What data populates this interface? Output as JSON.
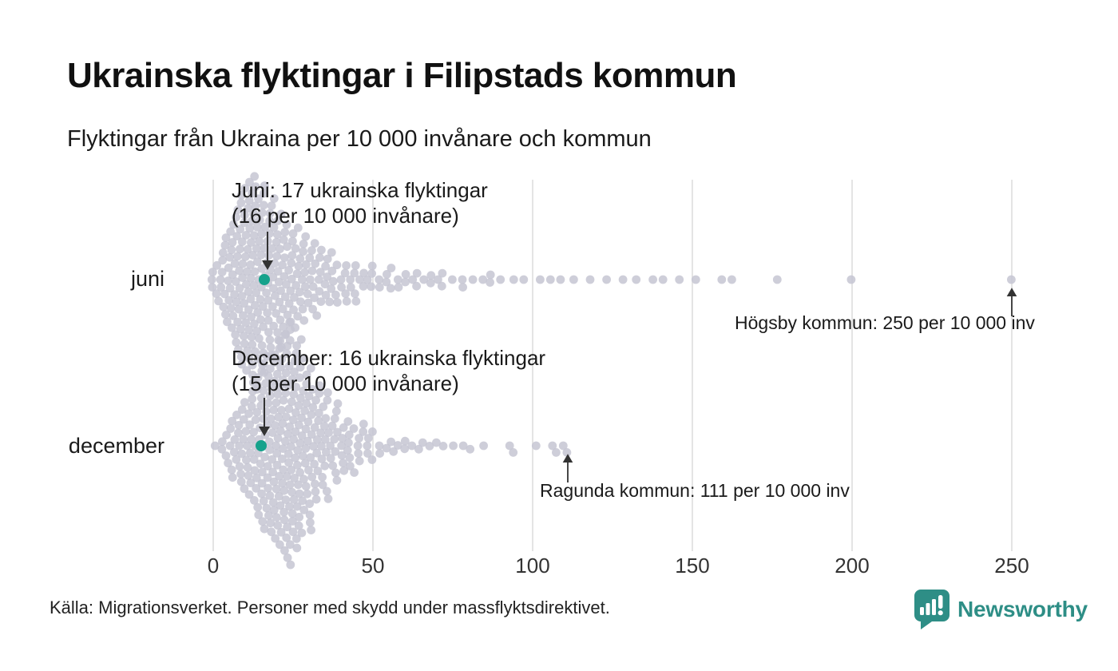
{
  "title": "Ukrainska flyktingar i Filipstads kommun",
  "subtitle": "Flyktingar från Ukraina per 10 000 invånare och kommun",
  "source": "Källa: Migrationsverket. Personer med skydd under massflyktsdirektivet.",
  "branding": {
    "name": "Newsworthy",
    "color": "#2e8e86"
  },
  "colors": {
    "dot": "#c6c6d2",
    "highlight": "#16a28c",
    "gridline": "#dcdcdc",
    "arrow": "#333333",
    "tick_text": "#333333"
  },
  "chart_data": {
    "type": "beeswarm",
    "title": "Ukrainska flyktingar i Filipstads kommun",
    "subtitle": "Flyktingar från Ukraina per 10 000 invånare och kommun",
    "xlabel": "",
    "ylabel": "",
    "x_ticks": [
      0,
      50,
      100,
      150,
      200,
      250
    ],
    "xlim": [
      0,
      258
    ],
    "grid": true,
    "rows": [
      {
        "label": "juni",
        "highlight": {
          "name": "Filipstads kommun",
          "value": 16
        },
        "annotation": {
          "line1": "Juni: 17 ukrainska flyktingar",
          "line2": "(16 per 10 000 invånare)"
        },
        "outlier": {
          "label": "Högsby kommun: 250 per 10 000 inv",
          "value": 250
        },
        "values_histogram": [
          [
            0,
            3
          ],
          [
            1,
            2
          ],
          [
            2,
            3
          ],
          [
            3,
            4
          ],
          [
            4,
            5
          ],
          [
            5,
            6
          ],
          [
            6,
            7
          ],
          [
            7,
            8
          ],
          [
            8,
            9
          ],
          [
            9,
            10
          ],
          [
            10,
            11
          ],
          [
            11,
            11
          ],
          [
            12,
            12
          ],
          [
            13,
            12
          ],
          [
            14,
            11
          ],
          [
            15,
            10
          ],
          [
            16,
            10
          ],
          [
            17,
            9
          ],
          [
            18,
            9
          ],
          [
            19,
            8
          ],
          [
            20,
            8
          ],
          [
            21,
            7
          ],
          [
            22,
            7
          ],
          [
            23,
            6
          ],
          [
            24,
            6
          ],
          [
            25,
            6
          ],
          [
            26,
            5
          ],
          [
            27,
            5
          ],
          [
            28,
            5
          ],
          [
            29,
            4
          ],
          [
            30,
            4
          ],
          [
            31,
            4
          ],
          [
            32,
            4
          ],
          [
            33,
            3
          ],
          [
            34,
            3
          ],
          [
            35,
            3
          ],
          [
            36,
            3
          ],
          [
            37,
            3
          ],
          [
            38,
            2
          ],
          [
            39,
            2
          ],
          [
            40,
            2
          ],
          [
            41,
            2
          ],
          [
            42,
            2
          ],
          [
            43,
            2
          ],
          [
            44,
            2
          ],
          [
            45,
            2
          ],
          [
            46,
            1
          ],
          [
            47,
            2
          ],
          [
            48,
            1
          ],
          [
            49,
            1
          ],
          [
            50,
            2
          ],
          [
            52,
            2
          ],
          [
            54,
            2
          ],
          [
            56,
            2
          ],
          [
            58,
            2
          ],
          [
            60,
            2
          ],
          [
            62,
            1
          ],
          [
            64,
            2
          ],
          [
            66,
            1
          ],
          [
            68,
            2
          ],
          [
            70,
            1
          ],
          [
            72,
            2
          ],
          [
            75,
            1
          ],
          [
            78,
            2
          ],
          [
            81,
            1
          ],
          [
            84,
            1
          ],
          [
            87,
            2
          ],
          [
            90,
            1
          ]
        ],
        "tail_values": [
          94,
          97,
          102,
          106,
          109,
          113,
          118,
          123,
          128,
          132,
          138,
          141,
          146,
          151,
          159,
          162,
          177,
          200,
          250
        ]
      },
      {
        "label": "december",
        "highlight": {
          "name": "Filipstads kommun",
          "value": 15
        },
        "annotation": {
          "line1": "December: 16 ukrainska flyktingar",
          "line2": "(15 per 10 000 invånare)"
        },
        "outlier": {
          "label": "Ragunda kommun: 111 per 10 000 inv",
          "value": 111
        },
        "values_histogram": [
          [
            1,
            1
          ],
          [
            3,
            2
          ],
          [
            4,
            2
          ],
          [
            5,
            3
          ],
          [
            6,
            3
          ],
          [
            7,
            4
          ],
          [
            8,
            4
          ],
          [
            9,
            5
          ],
          [
            10,
            5
          ],
          [
            11,
            6
          ],
          [
            12,
            6
          ],
          [
            13,
            7
          ],
          [
            14,
            8
          ],
          [
            15,
            9
          ],
          [
            16,
            9
          ],
          [
            17,
            10
          ],
          [
            18,
            10
          ],
          [
            19,
            11
          ],
          [
            20,
            11
          ],
          [
            21,
            12
          ],
          [
            22,
            12
          ],
          [
            23,
            13
          ],
          [
            24,
            13
          ],
          [
            25,
            12
          ],
          [
            26,
            12
          ],
          [
            27,
            11
          ],
          [
            28,
            10
          ],
          [
            29,
            9
          ],
          [
            30,
            8
          ],
          [
            31,
            8
          ],
          [
            32,
            7
          ],
          [
            33,
            6
          ],
          [
            34,
            6
          ],
          [
            35,
            5
          ],
          [
            36,
            5
          ],
          [
            37,
            4
          ],
          [
            38,
            4
          ],
          [
            39,
            4
          ],
          [
            40,
            3
          ],
          [
            41,
            3
          ],
          [
            42,
            3
          ],
          [
            43,
            3
          ],
          [
            44,
            2
          ],
          [
            45,
            2
          ],
          [
            46,
            2
          ],
          [
            47,
            2
          ],
          [
            48,
            2
          ],
          [
            49,
            1
          ],
          [
            50,
            2
          ],
          [
            52,
            2
          ],
          [
            54,
            1
          ],
          [
            56,
            2
          ],
          [
            58,
            1
          ],
          [
            60,
            2
          ],
          [
            62,
            1
          ],
          [
            64,
            1
          ],
          [
            66,
            1
          ],
          [
            68,
            1
          ],
          [
            70,
            1
          ],
          [
            72,
            1
          ],
          [
            75,
            1
          ],
          [
            78,
            1
          ],
          [
            80,
            1
          ]
        ],
        "tail_values": [
          85,
          93,
          94,
          101,
          106,
          107,
          110,
          111
        ]
      }
    ]
  }
}
